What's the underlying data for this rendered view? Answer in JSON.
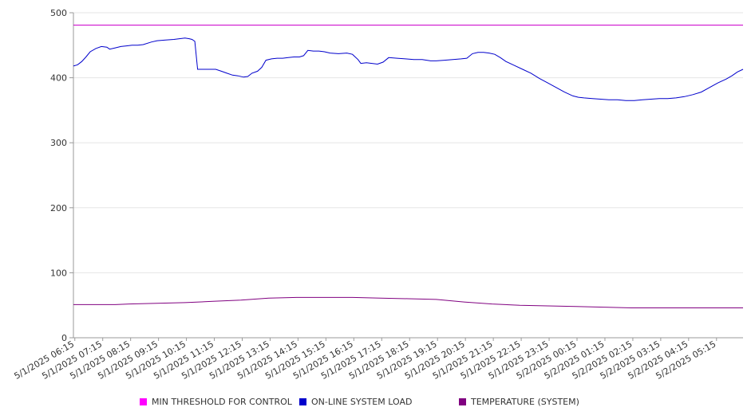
{
  "chart_data": {
    "type": "line",
    "ylim": [
      0,
      500
    ],
    "yticks": [
      0,
      100,
      200,
      300,
      400,
      500
    ],
    "x_tick_labels": [
      "5/1/2025 06:15",
      "5/1/2025 07:15",
      "5/1/2025 08:15",
      "5/1/2025 09:15",
      "5/1/2025 10:15",
      "5/1/2025 11:15",
      "5/1/2025 12:15",
      "5/1/2025 13:15",
      "5/1/2025 14:15",
      "5/1/2025 15:15",
      "5/1/2025 16:15",
      "5/1/2025 17:15",
      "5/1/2025 18:15",
      "5/1/2025 19:15",
      "5/1/2025 20:15",
      "5/1/2025 21:15",
      "5/1/2025 22:15",
      "5/1/2025 23:15",
      "5/2/2025 00:15",
      "5/2/2025 01:15",
      "5/2/2025 02:15",
      "5/2/2025 03:15",
      "5/2/2025 04:15",
      "5/2/2025 05:15"
    ],
    "x_range_hours": [
      0,
      24
    ],
    "grid": true,
    "legend_position": "bottom",
    "series": [
      {
        "name": "MIN THRESHOLD FOR CONTROL",
        "color": "#cc00cc",
        "points": [
          [
            0,
            481
          ],
          [
            24,
            481
          ]
        ]
      },
      {
        "name": "ON-LINE SYSTEM LOAD",
        "color": "#0000cc",
        "points": [
          [
            0,
            418
          ],
          [
            0.15,
            420
          ],
          [
            0.3,
            425
          ],
          [
            0.45,
            432
          ],
          [
            0.6,
            440
          ],
          [
            0.8,
            445
          ],
          [
            1.0,
            448
          ],
          [
            1.2,
            447
          ],
          [
            1.3,
            444
          ],
          [
            1.5,
            446
          ],
          [
            1.7,
            448
          ],
          [
            1.9,
            449
          ],
          [
            2.1,
            450
          ],
          [
            2.3,
            450
          ],
          [
            2.5,
            451
          ],
          [
            2.8,
            455
          ],
          [
            3.0,
            457
          ],
          [
            3.3,
            458
          ],
          [
            3.6,
            459
          ],
          [
            3.8,
            460
          ],
          [
            4.0,
            461
          ],
          [
            4.15,
            460
          ],
          [
            4.25,
            459
          ],
          [
            4.35,
            456
          ],
          [
            4.45,
            413
          ],
          [
            4.8,
            413
          ],
          [
            5.1,
            413
          ],
          [
            5.3,
            410
          ],
          [
            5.5,
            407
          ],
          [
            5.7,
            404
          ],
          [
            5.9,
            403
          ],
          [
            6.1,
            401
          ],
          [
            6.25,
            402
          ],
          [
            6.4,
            407
          ],
          [
            6.6,
            410
          ],
          [
            6.75,
            416
          ],
          [
            6.9,
            427
          ],
          [
            7.1,
            429
          ],
          [
            7.3,
            430
          ],
          [
            7.5,
            430
          ],
          [
            7.7,
            431
          ],
          [
            7.9,
            432
          ],
          [
            8.1,
            432
          ],
          [
            8.25,
            434
          ],
          [
            8.4,
            442
          ],
          [
            8.6,
            441
          ],
          [
            8.8,
            441
          ],
          [
            9.0,
            440
          ],
          [
            9.2,
            438
          ],
          [
            9.5,
            437
          ],
          [
            9.8,
            438
          ],
          [
            10.0,
            436
          ],
          [
            10.2,
            428
          ],
          [
            10.3,
            422
          ],
          [
            10.5,
            423
          ],
          [
            10.7,
            422
          ],
          [
            10.9,
            421
          ],
          [
            11.1,
            424
          ],
          [
            11.3,
            431
          ],
          [
            11.6,
            430
          ],
          [
            11.9,
            429
          ],
          [
            12.2,
            428
          ],
          [
            12.5,
            428
          ],
          [
            12.8,
            426
          ],
          [
            13.0,
            426
          ],
          [
            13.3,
            427
          ],
          [
            13.6,
            428
          ],
          [
            13.9,
            429
          ],
          [
            14.1,
            430
          ],
          [
            14.3,
            437
          ],
          [
            14.5,
            439
          ],
          [
            14.7,
            439
          ],
          [
            14.9,
            438
          ],
          [
            15.1,
            436
          ],
          [
            15.3,
            431
          ],
          [
            15.5,
            425
          ],
          [
            15.8,
            419
          ],
          [
            16.1,
            413
          ],
          [
            16.4,
            407
          ],
          [
            16.7,
            399
          ],
          [
            17.0,
            392
          ],
          [
            17.3,
            385
          ],
          [
            17.6,
            378
          ],
          [
            17.9,
            372
          ],
          [
            18.1,
            370
          ],
          [
            18.3,
            369
          ],
          [
            18.6,
            368
          ],
          [
            18.9,
            367
          ],
          [
            19.2,
            366
          ],
          [
            19.5,
            366
          ],
          [
            19.8,
            365
          ],
          [
            20.1,
            365
          ],
          [
            20.4,
            366
          ],
          [
            20.7,
            367
          ],
          [
            21.0,
            368
          ],
          [
            21.3,
            368
          ],
          [
            21.6,
            369
          ],
          [
            21.9,
            371
          ],
          [
            22.2,
            374
          ],
          [
            22.5,
            378
          ],
          [
            22.8,
            385
          ],
          [
            23.1,
            392
          ],
          [
            23.4,
            398
          ],
          [
            23.6,
            403
          ],
          [
            23.8,
            409
          ],
          [
            24.0,
            413
          ]
        ]
      },
      {
        "name": "TEMPERATURE (SYSTEM)",
        "color": "#800080",
        "points": [
          [
            0,
            51
          ],
          [
            1.5,
            51
          ],
          [
            2.0,
            52
          ],
          [
            3.0,
            53
          ],
          [
            4.0,
            54
          ],
          [
            5.0,
            56
          ],
          [
            6.0,
            58
          ],
          [
            7.0,
            61
          ],
          [
            8.0,
            62
          ],
          [
            9.0,
            62
          ],
          [
            10.0,
            62
          ],
          [
            11.0,
            61
          ],
          [
            12.0,
            60
          ],
          [
            13.0,
            59
          ],
          [
            14.0,
            55
          ],
          [
            15.0,
            52
          ],
          [
            16.0,
            50
          ],
          [
            17.0,
            49
          ],
          [
            18.0,
            48
          ],
          [
            19.0,
            47
          ],
          [
            20.0,
            46
          ],
          [
            21.0,
            46
          ],
          [
            22.0,
            46
          ],
          [
            23.0,
            46
          ],
          [
            24.0,
            46
          ]
        ]
      }
    ]
  }
}
